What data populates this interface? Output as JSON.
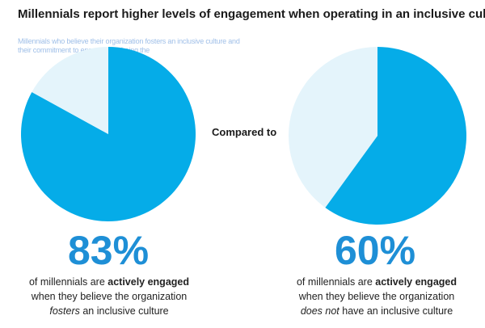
{
  "title": "Millennials report higher levels of engagement when operating in an inclusive culture",
  "faint_text": {
    "line1": "Millennials who believe their organization fosters an inclusive culture and",
    "line2": "their commitment to engagement being the"
  },
  "compared_label": "Compared to",
  "colors": {
    "engaged": "#05ace8",
    "not_engaged": "#e4f4fb",
    "percent_text": "#1e8fd6"
  },
  "chart_data": [
    {
      "type": "pie",
      "title": "",
      "slices": [
        {
          "label": "",
          "value": 83
        },
        {
          "label": "",
          "value": 17
        }
      ],
      "value_label": "83%",
      "description": {
        "pre": "of millennials are ",
        "bold": "actively engaged",
        "line2": "when they believe the organization",
        "italic": "fosters",
        "line3_rest": " an inclusive culture"
      }
    },
    {
      "type": "pie",
      "title": "",
      "slices": [
        {
          "label": "",
          "value": 60
        },
        {
          "label": "",
          "value": 40
        }
      ],
      "value_label": "60%",
      "description": {
        "pre": "of millennials are ",
        "bold": "actively engaged",
        "line2": "when they believe the organization",
        "italic": "does not",
        "line3_rest": " have an inclusive culture"
      }
    }
  ]
}
